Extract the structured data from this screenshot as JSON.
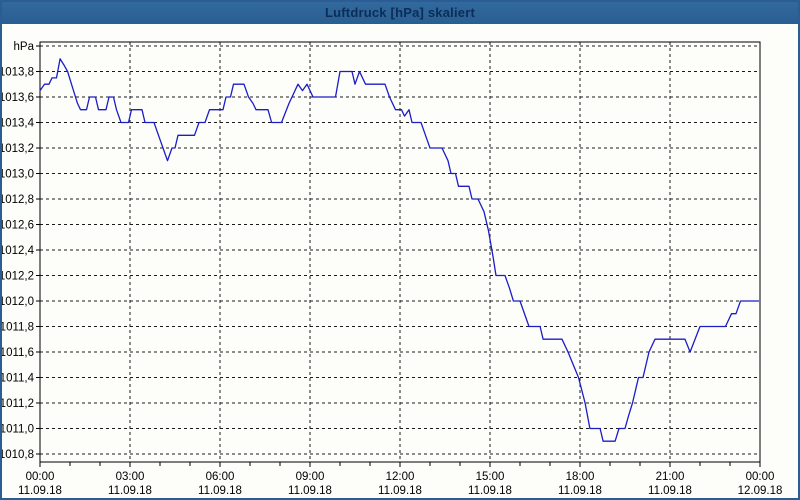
{
  "window": {
    "title": "Luftdruck [hPa] skaliert"
  },
  "colors": {
    "titlebar_bg": "#2b649a",
    "titlebar_text": "#0b2d57",
    "frame_border": "#2b5d92",
    "plot_bg": "#fdfdfa",
    "grid": "#1a1a1a",
    "axis": "#000000",
    "label_text": "#000000",
    "line": "#1d1dc8"
  },
  "chart_data": {
    "type": "line",
    "title": "Luftdruck [hPa] skaliert",
    "ylabel": "hPa",
    "grid": "dotted",
    "legend": "none",
    "y_axis": {
      "min": 1010.8,
      "max": 1014.0,
      "step": 0.2,
      "ticks": [
        {
          "value": 1014.0,
          "label": "hPa"
        },
        {
          "value": 1013.8,
          "label": "1013,8"
        },
        {
          "value": 1013.6,
          "label": "1013,6"
        },
        {
          "value": 1013.4,
          "label": "1013,4"
        },
        {
          "value": 1013.2,
          "label": "1013,2"
        },
        {
          "value": 1013.0,
          "label": "1013,0"
        },
        {
          "value": 1012.8,
          "label": "1012,8"
        },
        {
          "value": 1012.6,
          "label": "1012,6"
        },
        {
          "value": 1012.4,
          "label": "1012,4"
        },
        {
          "value": 1012.2,
          "label": "1012,2"
        },
        {
          "value": 1012.0,
          "label": "1012,0"
        },
        {
          "value": 1011.8,
          "label": "1011,8"
        },
        {
          "value": 1011.6,
          "label": "1011,6"
        },
        {
          "value": 1011.4,
          "label": "1011,4"
        },
        {
          "value": 1011.2,
          "label": "1011,2"
        },
        {
          "value": 1011.0,
          "label": "1011,0"
        },
        {
          "value": 1010.8,
          "label": "1010,8"
        }
      ]
    },
    "x_axis": {
      "start_hour": 0,
      "end_hour": 24,
      "major_step_hours": 3,
      "minor_step_hours": 1,
      "ticks": [
        {
          "hour": 0,
          "time": "00:00",
          "date": "11.09.18"
        },
        {
          "hour": 3,
          "time": "03:00",
          "date": "11.09.18"
        },
        {
          "hour": 6,
          "time": "06:00",
          "date": "11.09.18"
        },
        {
          "hour": 9,
          "time": "09:00",
          "date": "11.09.18"
        },
        {
          "hour": 12,
          "time": "12:00",
          "date": "11.09.18"
        },
        {
          "hour": 15,
          "time": "15:00",
          "date": "11.09.18"
        },
        {
          "hour": 18,
          "time": "18:00",
          "date": "11.09.18"
        },
        {
          "hour": 21,
          "time": "21:00",
          "date": "11.09.18"
        },
        {
          "hour": 24,
          "time": "00:00",
          "date": "12.09.18"
        }
      ]
    },
    "series": [
      {
        "name": "Luftdruck [hPa]",
        "color": "#1d1dc8",
        "points": [
          [
            0.0,
            1013.65
          ],
          [
            0.15,
            1013.7
          ],
          [
            0.3,
            1013.7
          ],
          [
            0.4,
            1013.75
          ],
          [
            0.55,
            1013.75
          ],
          [
            0.67,
            1013.9
          ],
          [
            0.8,
            1013.85
          ],
          [
            0.92,
            1013.8
          ],
          [
            1.05,
            1013.7
          ],
          [
            1.25,
            1013.55
          ],
          [
            1.35,
            1013.5
          ],
          [
            1.55,
            1013.5
          ],
          [
            1.65,
            1013.6
          ],
          [
            1.85,
            1013.6
          ],
          [
            1.95,
            1013.5
          ],
          [
            2.2,
            1013.5
          ],
          [
            2.3,
            1013.6
          ],
          [
            2.45,
            1013.6
          ],
          [
            2.55,
            1013.5
          ],
          [
            2.7,
            1013.4
          ],
          [
            2.95,
            1013.4
          ],
          [
            3.05,
            1013.5
          ],
          [
            3.4,
            1013.5
          ],
          [
            3.5,
            1013.4
          ],
          [
            3.8,
            1013.4
          ],
          [
            3.95,
            1013.3
          ],
          [
            4.1,
            1013.2
          ],
          [
            4.25,
            1013.1
          ],
          [
            4.4,
            1013.2
          ],
          [
            4.5,
            1013.2
          ],
          [
            4.6,
            1013.3
          ],
          [
            5.15,
            1013.3
          ],
          [
            5.3,
            1013.4
          ],
          [
            5.5,
            1013.4
          ],
          [
            5.65,
            1013.5
          ],
          [
            6.1,
            1013.5
          ],
          [
            6.2,
            1013.6
          ],
          [
            6.35,
            1013.6
          ],
          [
            6.45,
            1013.7
          ],
          [
            6.8,
            1013.7
          ],
          [
            6.95,
            1013.6
          ],
          [
            7.1,
            1013.55
          ],
          [
            7.2,
            1013.5
          ],
          [
            7.6,
            1013.5
          ],
          [
            7.72,
            1013.4
          ],
          [
            8.05,
            1013.4
          ],
          [
            8.3,
            1013.55
          ],
          [
            8.6,
            1013.7
          ],
          [
            8.75,
            1013.65
          ],
          [
            8.9,
            1013.7
          ],
          [
            9.1,
            1013.6
          ],
          [
            9.85,
            1013.6
          ],
          [
            10.0,
            1013.8
          ],
          [
            10.4,
            1013.8
          ],
          [
            10.5,
            1013.7
          ],
          [
            10.65,
            1013.8
          ],
          [
            10.85,
            1013.7
          ],
          [
            11.5,
            1013.7
          ],
          [
            11.65,
            1013.6
          ],
          [
            11.85,
            1013.5
          ],
          [
            12.05,
            1013.5
          ],
          [
            12.15,
            1013.45
          ],
          [
            12.3,
            1013.5
          ],
          [
            12.4,
            1013.4
          ],
          [
            12.7,
            1013.4
          ],
          [
            12.85,
            1013.3
          ],
          [
            13.0,
            1013.2
          ],
          [
            13.4,
            1013.2
          ],
          [
            13.6,
            1013.1
          ],
          [
            13.7,
            1013.0
          ],
          [
            13.85,
            1013.0
          ],
          [
            13.95,
            1012.9
          ],
          [
            14.3,
            1012.9
          ],
          [
            14.4,
            1012.8
          ],
          [
            14.6,
            1012.8
          ],
          [
            14.8,
            1012.7
          ],
          [
            14.95,
            1012.55
          ],
          [
            15.1,
            1012.35
          ],
          [
            15.2,
            1012.2
          ],
          [
            15.5,
            1012.2
          ],
          [
            15.65,
            1012.1
          ],
          [
            15.78,
            1012.0
          ],
          [
            16.0,
            1012.0
          ],
          [
            16.3,
            1011.8
          ],
          [
            16.67,
            1011.8
          ],
          [
            16.77,
            1011.7
          ],
          [
            17.4,
            1011.7
          ],
          [
            17.6,
            1011.6
          ],
          [
            17.95,
            1011.4
          ],
          [
            18.17,
            1011.2
          ],
          [
            18.33,
            1011.0
          ],
          [
            18.67,
            1011.0
          ],
          [
            18.77,
            1010.9
          ],
          [
            19.17,
            1010.9
          ],
          [
            19.3,
            1011.0
          ],
          [
            19.5,
            1011.0
          ],
          [
            19.62,
            1011.1
          ],
          [
            19.75,
            1011.2
          ],
          [
            19.95,
            1011.4
          ],
          [
            20.1,
            1011.4
          ],
          [
            20.3,
            1011.6
          ],
          [
            20.5,
            1011.7
          ],
          [
            21.5,
            1011.7
          ],
          [
            21.67,
            1011.6
          ],
          [
            22.0,
            1011.8
          ],
          [
            22.85,
            1011.8
          ],
          [
            23.05,
            1011.9
          ],
          [
            23.2,
            1011.9
          ],
          [
            23.35,
            1012.0
          ],
          [
            23.95,
            1012.0
          ]
        ]
      }
    ]
  }
}
